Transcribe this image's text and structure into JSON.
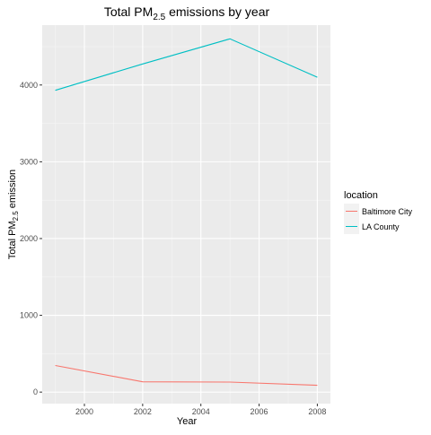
{
  "chart_data": {
    "type": "line",
    "title": {
      "prefix": "Total PM",
      "subscript": "2.5",
      "suffix": " emissions by year"
    },
    "xlabel": "Year",
    "ylabel": {
      "prefix": "Total PM",
      "subscript": "2.5",
      "suffix": " emission"
    },
    "x": [
      1999,
      2002,
      2005,
      2008
    ],
    "xlim": [
      1998.55,
      2008.45
    ],
    "ylim": [
      -150,
      4780
    ],
    "x_ticks": [
      2000,
      2002,
      2004,
      2006,
      2008
    ],
    "y_ticks": [
      0,
      1000,
      2000,
      3000,
      4000
    ],
    "grid": true,
    "legend": {
      "title": "location",
      "placement": "right"
    },
    "series": [
      {
        "name": "Baltimore City",
        "color": "#F8766D",
        "values": [
          346.82,
          134.31,
          130.43,
          88.28
        ]
      },
      {
        "name": "LA County",
        "color": "#00BFC4",
        "values": [
          3931.12,
          4274.03,
          4601.41,
          4101.32
        ]
      }
    ]
  }
}
